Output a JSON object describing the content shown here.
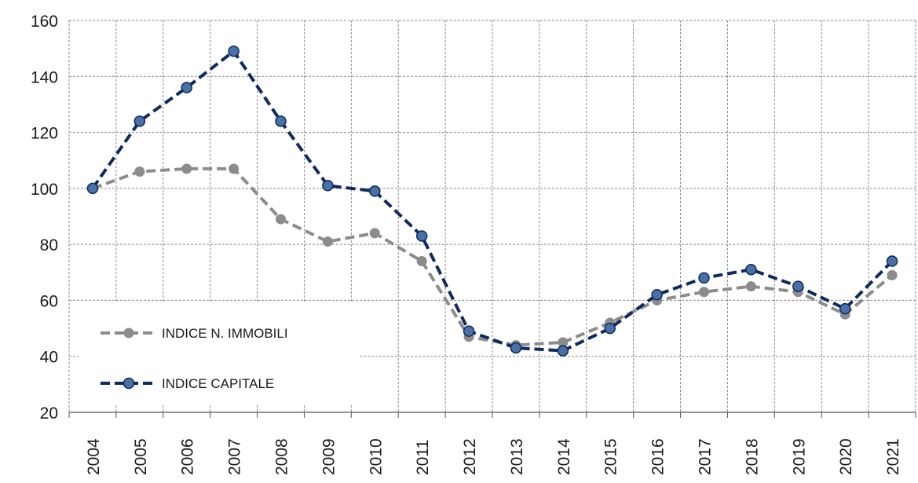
{
  "chart_data": {
    "type": "line",
    "categories": [
      "2004",
      "2005",
      "2006",
      "2007",
      "2008",
      "2009",
      "2010",
      "2011",
      "2012",
      "2013",
      "2014",
      "2015",
      "2016",
      "2017",
      "2018",
      "2019",
      "2020",
      "2021"
    ],
    "series": [
      {
        "name": "INDICE N. IMMOBILI",
        "color": "#8c8c8c",
        "marker_color": "#8c8c8c",
        "dashed": true,
        "values": [
          100,
          106,
          107,
          107,
          89,
          81,
          84,
          74,
          47,
          44,
          45,
          52,
          60,
          63,
          65,
          63,
          55,
          69
        ]
      },
      {
        "name": "INDICE CAPITALE",
        "color": "#0f2a5c",
        "marker_color": "#4a70a8",
        "dashed": true,
        "values": [
          100,
          124,
          136,
          149,
          124,
          101,
          99,
          83,
          49,
          43,
          42,
          50,
          62,
          68,
          71,
          65,
          57,
          74
        ]
      }
    ],
    "ylim": [
      20,
      160
    ],
    "yticks": [
      20,
      40,
      60,
      80,
      100,
      120,
      140,
      160
    ],
    "grid": true,
    "legend": "lower left"
  }
}
